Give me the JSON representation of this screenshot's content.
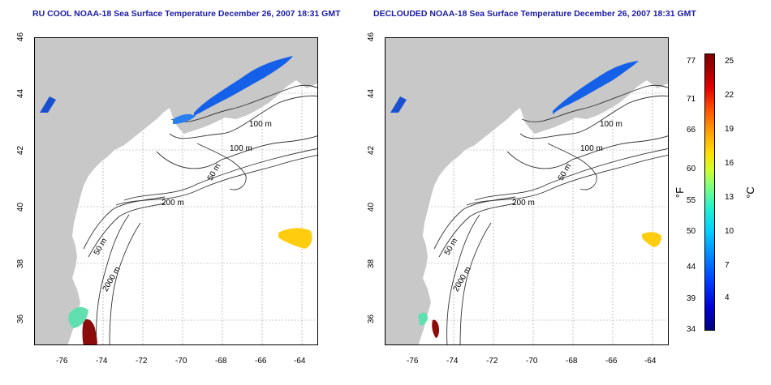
{
  "titles": {
    "left": "RU COOL NOAA-18 Sea Surface Temperature December 26, 2007 18:31 GMT",
    "right": "DECLOUDED NOAA-18 Sea Surface Temperature December 26, 2007 18:31 GMT"
  },
  "map": {
    "lon_ticks": [
      "-76",
      "-74",
      "-72",
      "-70",
      "-68",
      "-66",
      "-64"
    ],
    "lat_ticks": [
      "46",
      "44",
      "42",
      "40",
      "38",
      "36"
    ],
    "contour_labels": [
      "100 m",
      "100 m",
      "50 m",
      "200 m",
      "50 m",
      "2000 m"
    ],
    "land_color": "#c8c8c8",
    "contour_color": "#333333",
    "grid": true
  },
  "colorbar": {
    "fahrenheit_ticks": [
      "77",
      "71",
      "66",
      "60",
      "55",
      "50",
      "44",
      "39",
      "34"
    ],
    "celsius_ticks": [
      "25",
      "22",
      "19",
      "16",
      "13",
      "10",
      "7",
      "4"
    ],
    "unit_f": "°F",
    "unit_c": "°C"
  }
}
